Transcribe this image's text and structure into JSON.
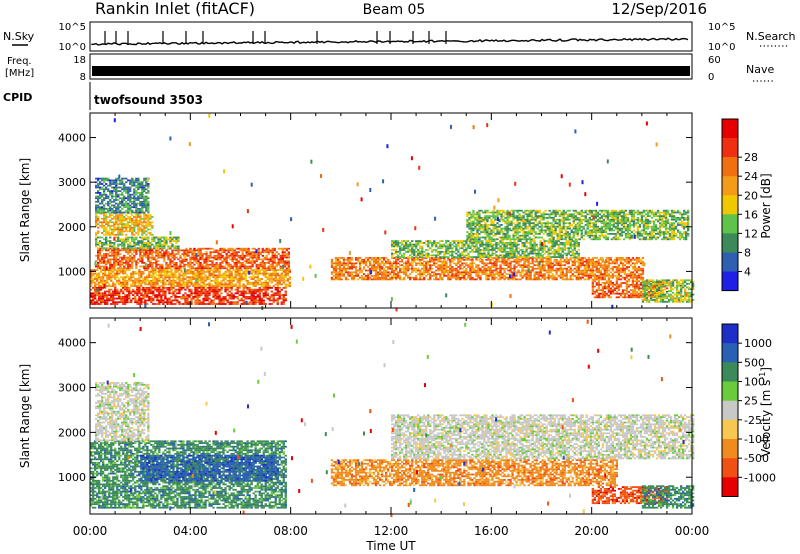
{
  "header": {
    "station": "Rankin Inlet (fitACF)",
    "beam": "Beam 05",
    "date": "12/Sep/2016"
  },
  "nsky_panel": {
    "left_label": "N.Sky",
    "right_label": "N.Search",
    "left_ticks": [
      "10^5",
      "10^0"
    ],
    "right_ticks": [
      "10^5",
      "10^0"
    ]
  },
  "freq_panel": {
    "left_label_line1": "Freq.",
    "left_label_line2": "[MHz]",
    "left_ticks": [
      "18",
      "8"
    ],
    "right_label": "Nave",
    "right_ticks": [
      "60",
      "0"
    ]
  },
  "cpid_panel": {
    "label": "CPID",
    "value": "twofsound 3503"
  },
  "colors": {
    "power_scale": [
      "#1f1fe6",
      "#2f5fb0",
      "#3c8a5a",
      "#5fc24a",
      "#f0c800",
      "#f59b1a",
      "#f07010",
      "#ee3010",
      "#e60000"
    ],
    "velocity_scale": [
      "#1e2fc8",
      "#2a60b4",
      "#3c8a5a",
      "#6acb3c",
      "#c8c8c8",
      "#f6c850",
      "#f08c1e",
      "#f05014",
      "#e60000"
    ]
  },
  "chart_data": [
    {
      "type": "heatmap",
      "title": "",
      "xlabel": "",
      "ylabel": "Slant Range [km]",
      "ylim": [
        180,
        4550
      ],
      "xlim": [
        "00:00",
        "24:00"
      ],
      "y_ticks": [
        "1000",
        "2000",
        "3000",
        "4000"
      ],
      "colorbar": {
        "label": "Power [dB]",
        "tick_labels": [
          "4",
          "8",
          "12",
          "16",
          "20",
          "24",
          "28"
        ],
        "range": [
          0,
          32
        ]
      },
      "bands": [
        {
          "t0": 0.0,
          "t1": 7.8,
          "r0": 250,
          "r1": 650,
          "value": 27
        },
        {
          "t0": 0.0,
          "t1": 8.0,
          "r0": 650,
          "r1": 1050,
          "value": 20
        },
        {
          "t0": 0.2,
          "t1": 7.9,
          "r0": 1050,
          "r1": 1500,
          "value": 24
        },
        {
          "t0": 0.2,
          "t1": 3.5,
          "r0": 1500,
          "r1": 1750,
          "value": 12
        },
        {
          "t0": 0.2,
          "t1": 2.5,
          "r0": 1800,
          "r1": 2300,
          "value": 18
        },
        {
          "t0": 0.2,
          "t1": 2.3,
          "r0": 2300,
          "r1": 3100,
          "value": 8
        },
        {
          "t0": 9.6,
          "t1": 22.0,
          "r0": 800,
          "r1": 1300,
          "value": 22
        },
        {
          "t0": 12.0,
          "t1": 19.5,
          "r0": 1300,
          "r1": 1700,
          "value": 12
        },
        {
          "t0": 15.0,
          "t1": 23.8,
          "r0": 1700,
          "r1": 2350,
          "value": 12
        },
        {
          "t0": 20.0,
          "t1": 23.0,
          "r0": 400,
          "r1": 800,
          "value": 24
        },
        {
          "t0": 22.0,
          "t1": 24.0,
          "r0": 300,
          "r1": 800,
          "value": 14
        }
      ]
    },
    {
      "type": "heatmap",
      "title": "",
      "xlabel": "Time UT",
      "ylabel": "Slant Range [km]",
      "ylim": [
        180,
        4550
      ],
      "xlim": [
        "00:00",
        "24:00"
      ],
      "x_ticks": [
        "00:00",
        "04:00",
        "08:00",
        "12:00",
        "16:00",
        "20:00",
        "00:00"
      ],
      "y_ticks": [
        "1000",
        "2000",
        "3000",
        "4000"
      ],
      "colorbar": {
        "label": "Velocity [m s^-1]",
        "tick_labels": [
          "1000",
          "500",
          "100",
          "25",
          "-25",
          "-100",
          "-500",
          "-1000"
        ]
      },
      "bands": [
        {
          "t0": 0.0,
          "t1": 7.8,
          "r0": 300,
          "r1": 1800,
          "value": 100
        },
        {
          "t0": 2.0,
          "t1": 7.5,
          "r0": 900,
          "r1": 1500,
          "value": 500
        },
        {
          "t0": 0.2,
          "t1": 2.3,
          "r0": 1800,
          "r1": 3100,
          "value": 0
        },
        {
          "t0": 9.6,
          "t1": 21.0,
          "r0": 800,
          "r1": 1400,
          "value": -100
        },
        {
          "t0": 12.0,
          "t1": 24.0,
          "r0": 1400,
          "r1": 2400,
          "value": 0
        },
        {
          "t0": 20.0,
          "t1": 23.0,
          "r0": 400,
          "r1": 800,
          "value": -500
        },
        {
          "t0": 22.0,
          "t1": 24.0,
          "r0": 300,
          "r1": 800,
          "value": 100
        }
      ]
    }
  ]
}
